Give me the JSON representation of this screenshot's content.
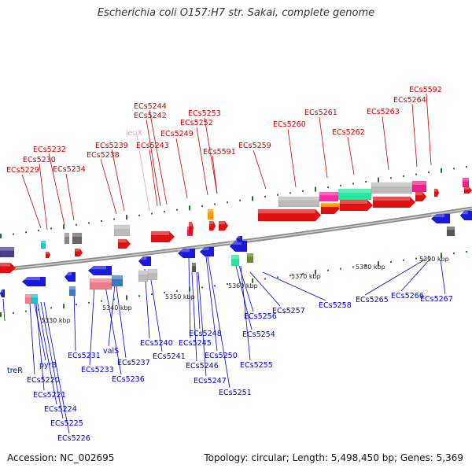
{
  "title": "Escherichia coli O157:H7 str. Sakai, complete genome",
  "footer": {
    "accession": "Accession: NC_002695",
    "summary": "Topology: circular; Length: 5,498,450 bp; Genes: 5,369"
  },
  "colors": {
    "upper_label": "#cc0000",
    "lower_label": "#0000cc",
    "pink_label": "#e89ac7",
    "backbone": "#8a8a8a",
    "tick": "#1a7a1a"
  },
  "scale_labels": [
    "5330 kbp",
    "5340 kbp",
    "5350 kbp",
    "5360 kbp",
    "5370 kbp",
    "5380 kbp",
    "5390 kbp"
  ],
  "upper_labels": [
    "ECs5229",
    "ECs5230",
    "ECs5232",
    "ECs5234",
    "ECs5238",
    "ECs5239",
    "leuX",
    "ECs5242",
    "ECs5244",
    "ECs5243",
    "ECs5249",
    "ECs5252",
    "ECs5253",
    "ECs5591",
    "ECs5259",
    "ECs5260",
    "ECs5261",
    "ECs5262",
    "ECs5263",
    "ECs5264",
    "ECs5592"
  ],
  "lower_labels": [
    "treR",
    "ECs5220",
    "pyrB",
    "ECs5221",
    "ECs5224",
    "ECs5225",
    "ECs5226",
    "ECs5231",
    "ECs5233",
    "valS",
    "ECs5237",
    "ECs5236",
    "ECs5240",
    "ECs5241",
    "ECs5245",
    "ECs5248",
    "ECs5246",
    "ECs5250",
    "ECs5247",
    "ECs5251",
    "ECs5254",
    "ECs5255",
    "ECs5256",
    "ECs5257",
    "ECs5258",
    "ECs5265",
    "ECs5266",
    "ECs5267"
  ]
}
